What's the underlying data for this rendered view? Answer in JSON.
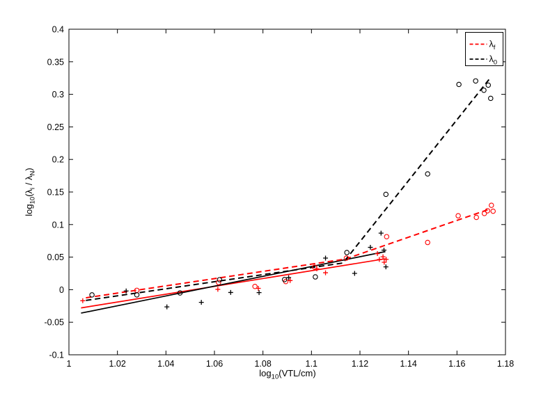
{
  "figure": {
    "background": "#ffffff"
  },
  "chart_data": {
    "type": "scatter",
    "title": "",
    "xlabel_parts": [
      [
        "log",
        ""
      ],
      [
        "",
        "10"
      ],
      [
        "(VTL/cm)",
        ""
      ]
    ],
    "ylabel_parts": [
      [
        "log",
        ""
      ],
      [
        "",
        "10"
      ],
      [
        "(λ",
        ""
      ],
      [
        "",
        "i"
      ],
      [
        " / λ",
        ""
      ],
      [
        "",
        "N"
      ],
      [
        ")",
        ""
      ]
    ],
    "xlim": [
      1.0,
      1.18
    ],
    "ylim": [
      -0.1,
      0.4
    ],
    "grid": false,
    "xticks": {
      "values": [
        1.0,
        1.02,
        1.04,
        1.06,
        1.08,
        1.1,
        1.12,
        1.14,
        1.16,
        1.18
      ],
      "labels": [
        "1",
        "1.02",
        "1.04",
        "1.06",
        "1.08",
        "1.1",
        "1.12",
        "1.14",
        "1.16",
        "1.18"
      ]
    },
    "yticks": {
      "values": [
        -0.1,
        -0.05,
        0,
        0.05,
        0.1,
        0.15,
        0.2,
        0.25,
        0.3,
        0.35,
        0.4
      ],
      "labels": [
        "-0.1",
        "-0.05",
        "0",
        "0.05",
        "0.1",
        "0.15",
        "0.2",
        "0.25",
        "0.3",
        "0.35",
        "0.4"
      ]
    },
    "colors": {
      "lambda_f": "#ff0000",
      "lambda_0": "#000000",
      "axis": "#000000",
      "background": "#ffffff"
    },
    "legend": {
      "position": "top-right",
      "entries": [
        {
          "name": "lambda-f",
          "base": "λ",
          "sub": "f",
          "color": "#ff0000",
          "line_style": "dashed"
        },
        {
          "name": "lambda-0",
          "base": "λ",
          "sub": "0",
          "color": "#000000",
          "line_style": "dashed"
        }
      ]
    },
    "series": [
      {
        "name": "lambda-f-circles",
        "marker": "circle",
        "color": "#ff0000",
        "points": [
          [
            1.028,
            -0.001
          ],
          [
            1.0617,
            0.011
          ],
          [
            1.0767,
            0.005
          ],
          [
            1.0894,
            0.0125
          ],
          [
            1.1013,
            0.0345
          ],
          [
            1.1144,
            0.0485
          ],
          [
            1.131,
            0.0814
          ],
          [
            1.1479,
            0.0725
          ],
          [
            1.1605,
            0.1135
          ],
          [
            1.168,
            0.111
          ],
          [
            1.1713,
            0.117
          ],
          [
            1.1726,
            0.1212
          ],
          [
            1.1742,
            0.1296
          ],
          [
            1.1749,
            0.1205
          ]
        ]
      },
      {
        "name": "lambda-f-pluses",
        "marker": "plus",
        "color": "#ff0000",
        "points": [
          [
            1.0057,
            -0.017
          ],
          [
            1.0614,
            0.0005
          ],
          [
            1.0781,
            0.002
          ],
          [
            1.0912,
            0.014
          ],
          [
            1.1022,
            0.032
          ],
          [
            1.1058,
            0.026
          ],
          [
            1.1272,
            0.0554
          ],
          [
            1.128,
            0.0464
          ],
          [
            1.1295,
            0.0505
          ],
          [
            1.13,
            0.0421
          ],
          [
            1.1308,
            0.0465
          ]
        ]
      },
      {
        "name": "lambda-0-circles",
        "marker": "circle",
        "color": "#000000",
        "points": [
          [
            1.0095,
            -0.008
          ],
          [
            1.028,
            -0.008
          ],
          [
            1.0458,
            -0.005
          ],
          [
            1.0621,
            0.0153
          ],
          [
            1.0889,
            0.0155
          ],
          [
            1.1016,
            0.0196
          ],
          [
            1.1146,
            0.057
          ],
          [
            1.1307,
            0.1464
          ],
          [
            1.1479,
            0.1778
          ],
          [
            1.1608,
            0.3152
          ],
          [
            1.1677,
            0.3206
          ],
          [
            1.1711,
            0.3063
          ],
          [
            1.1729,
            0.3141
          ],
          [
            1.1739,
            0.2938
          ]
        ]
      },
      {
        "name": "lambda-0-pluses",
        "marker": "plus",
        "color": "#000000",
        "points": [
          [
            1.0236,
            -0.002
          ],
          [
            1.0404,
            -0.0264
          ],
          [
            1.0546,
            -0.0195
          ],
          [
            1.0667,
            -0.0043
          ],
          [
            1.0784,
            -0.0045
          ],
          [
            1.0906,
            0.0185
          ],
          [
            1.1058,
            0.0485
          ],
          [
            1.1178,
            0.025
          ],
          [
            1.1243,
            0.065
          ],
          [
            1.1287,
            0.0868
          ],
          [
            1.1299,
            0.0607
          ],
          [
            1.1307,
            0.035
          ]
        ]
      }
    ],
    "fit_lines": [
      {
        "name": "lambda-f-solid-fit",
        "color": "#ff0000",
        "style": "solid",
        "points": [
          [
            1.005,
            -0.028
          ],
          [
            1.1305,
            0.0475
          ]
        ]
      },
      {
        "name": "lambda-0-solid-fit",
        "color": "#000000",
        "style": "solid",
        "points": [
          [
            1.005,
            -0.036
          ],
          [
            1.1305,
            0.0585
          ]
        ]
      },
      {
        "name": "lambda-f-dashed-fit",
        "color": "#ff0000",
        "style": "dashed",
        "points": [
          [
            1.007,
            -0.0125
          ],
          [
            1.114,
            0.047
          ],
          [
            1.174,
            0.1245
          ]
        ]
      },
      {
        "name": "lambda-0-dashed-fit",
        "color": "#000000",
        "style": "dashed",
        "points": [
          [
            1.007,
            -0.0165
          ],
          [
            1.113,
            0.041
          ],
          [
            1.174,
            0.3265
          ]
        ]
      }
    ]
  }
}
